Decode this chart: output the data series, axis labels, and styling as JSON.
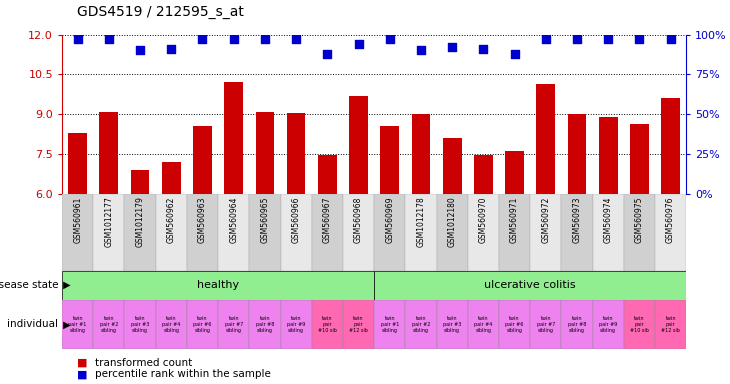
{
  "title": "GDS4519 / 212595_s_at",
  "samples": [
    "GSM560961",
    "GSM1012177",
    "GSM1012179",
    "GSM560962",
    "GSM560963",
    "GSM560964",
    "GSM560965",
    "GSM560966",
    "GSM560967",
    "GSM560968",
    "GSM560969",
    "GSM1012178",
    "GSM1012180",
    "GSM560970",
    "GSM560971",
    "GSM560972",
    "GSM560973",
    "GSM560974",
    "GSM560975",
    "GSM560976"
  ],
  "bar_values": [
    8.3,
    9.1,
    6.9,
    7.2,
    8.55,
    10.2,
    9.1,
    9.05,
    7.45,
    9.7,
    8.55,
    9.0,
    8.1,
    7.45,
    7.6,
    10.15,
    9.0,
    8.9,
    8.65,
    9.6
  ],
  "percentile_values": [
    97,
    97,
    90,
    91,
    97,
    97,
    97,
    97,
    88,
    94,
    97,
    90,
    92,
    91,
    88,
    97,
    97,
    97,
    97,
    97
  ],
  "bar_color": "#cc0000",
  "percentile_color": "#0000cc",
  "ylim_left": [
    6,
    12
  ],
  "yticks_left": [
    6,
    7.5,
    9,
    10.5,
    12
  ],
  "right_tick_labels": [
    "0%",
    "25%",
    "50%",
    "75%",
    "100%"
  ],
  "disease_state_healthy_label": "healthy",
  "disease_state_uc_label": "ulcerative colitis",
  "healthy_color": "#90ee90",
  "uc_color": "#90ee90",
  "healthy_n": 10,
  "uc_n": 10,
  "individuals": [
    "twin\npair #1\nsibling",
    "twin\npair #2\nsibling",
    "twin\npair #3\nsibling",
    "twin\npair #4\nsibling",
    "twin\npair #6\nsibling",
    "twin\npair #7\nsibling",
    "twin\npair #8\nsibling",
    "twin\npair #9\nsibling",
    "twin\npair\n#10 sib",
    "twin\npair\n#12 sib",
    "twin\npair #1\nsibling",
    "twin\npair #2\nsibling",
    "twin\npair #3\nsibling",
    "twin\npair #4\nsibling",
    "twin\npair #6\nsibling",
    "twin\npair #7\nsibling",
    "twin\npair #8\nsibling",
    "twin\npair #9\nsibling",
    "twin\npair\n#10 sib",
    "twin\npair\n#12 sib"
  ],
  "ind_colors": [
    "#ee82ee",
    "#ee82ee",
    "#ee82ee",
    "#ee82ee",
    "#ee82ee",
    "#ee82ee",
    "#ee82ee",
    "#ee82ee",
    "#ff69b4",
    "#ff69b4",
    "#ee82ee",
    "#ee82ee",
    "#ee82ee",
    "#ee82ee",
    "#ee82ee",
    "#ee82ee",
    "#ee82ee",
    "#ee82ee",
    "#ff69b4",
    "#ff69b4"
  ],
  "legend_bar_label": "transformed count",
  "legend_dot_label": "percentile rank within the sample",
  "tick_color_left": "#cc0000",
  "tick_color_right": "#0000cc",
  "bar_width": 0.6,
  "dot_size": 30,
  "dot_marker": "s",
  "sample_bg_even": "#d0d0d0",
  "sample_bg_odd": "#e8e8e8"
}
